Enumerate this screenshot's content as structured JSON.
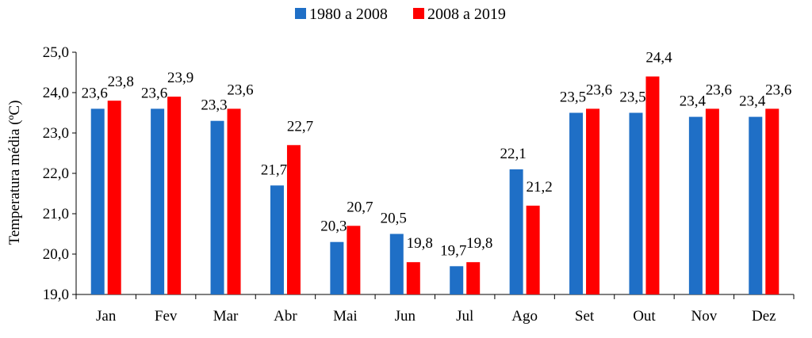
{
  "chart_data": {
    "type": "bar",
    "title": "",
    "xlabel": "",
    "ylabel": "Temperatura média (ºC)",
    "ylim": [
      19.0,
      25.0
    ],
    "yticks": [
      "19,0",
      "20,0",
      "21,0",
      "22,0",
      "23,0",
      "24,0",
      "25,0"
    ],
    "categories": [
      "Jan",
      "Fev",
      "Mar",
      "Abr",
      "Mai",
      "Jun",
      "Jul",
      "Ago",
      "Set",
      "Out",
      "Nov",
      "Dez"
    ],
    "legend_position": "top-center",
    "grid": false,
    "series": [
      {
        "name": "1980 a 2008",
        "color": "#1f6fc6",
        "values": [
          23.6,
          23.6,
          23.3,
          21.7,
          20.3,
          20.5,
          19.7,
          22.1,
          23.5,
          23.5,
          23.4,
          23.4
        ],
        "labels": [
          "23,6",
          "23,6",
          "23,3",
          "21,7",
          "20,3",
          "20,5",
          "19,7",
          "22,1",
          "23,5",
          "23,5",
          "23,4",
          "23,4"
        ]
      },
      {
        "name": "2008 a 2019",
        "color": "#ff0000",
        "values": [
          23.8,
          23.9,
          23.6,
          22.7,
          20.7,
          19.8,
          19.8,
          21.2,
          23.6,
          24.4,
          23.6,
          23.6
        ],
        "labels": [
          "23,8",
          "23,9",
          "23,6",
          "22,7",
          "20,7",
          "19,8",
          "19,8",
          "21,2",
          "23,6",
          "24,4",
          "23,6",
          "23,6"
        ]
      }
    ]
  }
}
